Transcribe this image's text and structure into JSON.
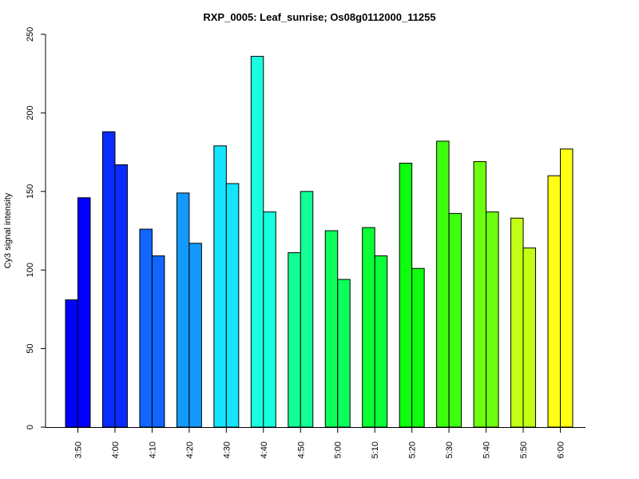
{
  "chart_data": {
    "type": "bar",
    "title": "RXP_0005: Leaf_sunrise; Os08g0112000_11255",
    "xlabel": "",
    "ylabel": "Cy3 signal intensity",
    "ylim": [
      0,
      250
    ],
    "yticks": [
      0,
      50,
      100,
      150,
      200,
      250
    ],
    "grid": false,
    "legend": "none",
    "categories": [
      "3:50",
      "4:00",
      "4:10",
      "4:20",
      "4:30",
      "4:40",
      "4:50",
      "5:00",
      "5:10",
      "5:20",
      "5:30",
      "5:40",
      "5:50",
      "6:00"
    ],
    "colors": [
      "#0000ff",
      "#0a2cff",
      "#1066ff",
      "#1499ff",
      "#15e4ff",
      "#1affdf",
      "#12ff95",
      "#0dff5e",
      "#0bff36",
      "#0dff0d",
      "#3eff0f",
      "#6dff10",
      "#c3ff14",
      "#ffff14"
    ],
    "series": [
      {
        "values": [
          81,
          188,
          126,
          149,
          179,
          236,
          111,
          125,
          127,
          168,
          182,
          169,
          133,
          160
        ]
      },
      {
        "values": [
          146,
          167,
          109,
          117,
          155,
          137,
          150,
          94,
          109,
          101,
          136,
          137,
          114,
          177
        ]
      }
    ]
  }
}
